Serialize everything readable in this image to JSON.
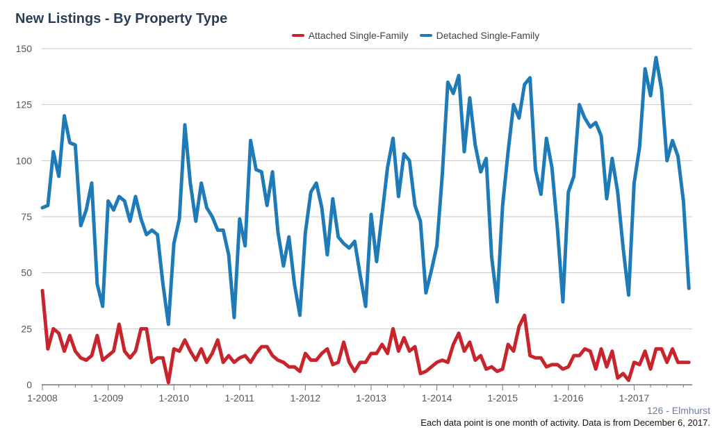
{
  "title": "New Listings - By Property Type",
  "subtitle": "126 - Elmhurst",
  "footnote": "Each data point is one month of activity. Data is from December 6, 2017.",
  "colors": {
    "attached": "#c8242c",
    "detached": "#1f7bb8",
    "grid": "#c8c8c8",
    "axis": "#555555"
  },
  "chart_data": {
    "type": "line",
    "title": "New Listings - By Property Type",
    "xlabel": "",
    "ylabel": "",
    "ylim": [
      0,
      150
    ],
    "yticks": [
      0,
      25,
      50,
      75,
      100,
      125,
      150
    ],
    "grid": true,
    "legend_position": "top-center",
    "x_start": "2008-01",
    "xtick_labels": [
      "1-2008",
      "1-2009",
      "1-2010",
      "1-2011",
      "1-2012",
      "1-2013",
      "1-2014",
      "1-2015",
      "1-2016",
      "1-2017"
    ],
    "series": [
      {
        "name": "Attached Single-Family",
        "values": [
          42,
          16,
          25,
          23,
          15,
          22,
          15,
          12,
          11,
          13,
          22,
          11,
          13,
          15,
          27,
          15,
          12,
          15,
          25,
          25,
          10,
          12,
          12,
          1,
          16,
          15,
          20,
          15,
          11,
          16,
          10,
          14,
          20,
          10,
          13,
          10,
          12,
          13,
          10,
          14,
          17,
          17,
          13,
          11,
          10,
          8,
          8,
          6,
          14,
          11,
          11,
          14,
          16,
          9,
          10,
          19,
          10,
          6,
          10,
          10,
          14,
          14,
          18,
          14,
          25,
          15,
          21,
          15,
          17,
          5,
          6,
          8,
          10,
          11,
          10,
          18,
          23,
          15,
          19,
          11,
          13,
          7,
          8,
          6,
          7,
          18,
          15,
          26,
          31,
          13,
          12,
          12,
          8,
          9,
          9,
          7,
          8,
          13,
          13,
          16,
          15,
          7,
          16,
          8,
          15,
          3,
          5,
          2,
          10,
          9,
          15,
          7,
          16,
          16,
          10,
          16,
          10,
          10,
          10
        ]
      },
      {
        "name": "Detached Single-Family",
        "values": [
          79,
          80,
          104,
          93,
          120,
          108,
          107,
          71,
          78,
          90,
          45,
          35,
          82,
          78,
          84,
          82,
          73,
          84,
          74,
          67,
          69,
          67,
          45,
          27,
          63,
          74,
          116,
          90,
          73,
          90,
          79,
          75,
          69,
          69,
          58,
          30,
          74,
          62,
          109,
          96,
          95,
          80,
          95,
          68,
          53,
          66,
          45,
          31,
          68,
          86,
          90,
          79,
          58,
          83,
          66,
          63,
          61,
          64,
          49,
          35,
          76,
          55,
          76,
          97,
          110,
          84,
          103,
          100,
          80,
          73,
          41,
          51,
          62,
          94,
          135,
          130,
          138,
          104,
          128,
          107,
          95,
          101,
          57,
          37,
          80,
          104,
          125,
          119,
          134,
          137,
          96,
          85,
          110,
          97,
          70,
          37,
          86,
          93,
          125,
          119,
          115,
          117,
          111,
          83,
          101,
          86,
          61,
          40,
          90,
          106,
          141,
          129,
          146,
          132,
          100,
          109,
          102,
          82,
          43
        ]
      }
    ]
  }
}
